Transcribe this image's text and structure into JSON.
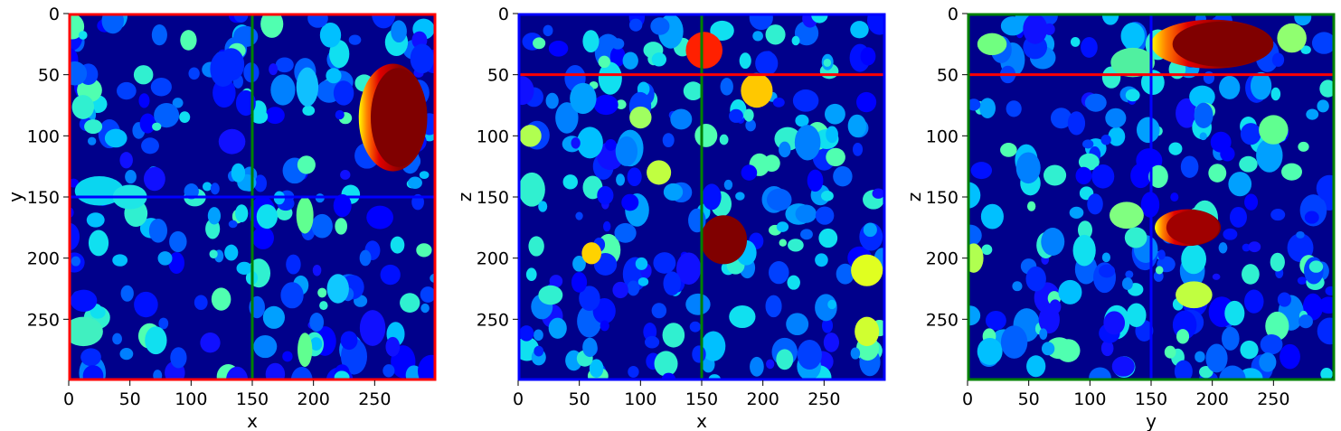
{
  "figure": {
    "background": "#ffffff"
  },
  "colors": {
    "background_label": "#00008b",
    "red_line": "#ff0000",
    "green_line": "#008000",
    "blue_line": "#0000ff",
    "colormap": "jet"
  },
  "chart_data": [
    {
      "type": "heatmap",
      "title": "",
      "xlabel": "x",
      "ylabel": "y",
      "xlim": [
        0,
        299
      ],
      "ylim": [
        299,
        0
      ],
      "xticks": [
        0,
        50,
        100,
        150,
        200,
        250
      ],
      "yticks": [
        0,
        50,
        100,
        150,
        200,
        250
      ],
      "frame_color": "#ff0000",
      "crosshair": [
        {
          "orientation": "vertical",
          "value": 150,
          "color": "#008000"
        },
        {
          "orientation": "horizontal",
          "value": 150,
          "color": "#0000ff"
        }
      ],
      "highlight_objects": [
        {
          "cx": 265,
          "cy": 85,
          "rx": 28,
          "ry": 44,
          "color": "#800000",
          "gradient": true
        },
        {
          "cx": 25,
          "cy": 145,
          "rx": 20,
          "ry": 12,
          "color": "#0ad6f0"
        },
        {
          "cx": 50,
          "cy": 150,
          "rx": 14,
          "ry": 10,
          "color": "#1ee6e6"
        },
        {
          "cx": 12,
          "cy": 260,
          "rx": 16,
          "ry": 12,
          "color": "#40f0c0"
        },
        {
          "cx": 195,
          "cy": 60,
          "rx": 9,
          "ry": 16,
          "color": "#10c0ff"
        },
        {
          "cx": 193,
          "cy": 165,
          "rx": 7,
          "ry": 15,
          "color": "#60ff90"
        },
        {
          "cx": 193,
          "cy": 275,
          "rx": 6,
          "ry": 14,
          "color": "#60ff90"
        },
        {
          "cx": 220,
          "cy": 225,
          "rx": 9,
          "ry": 12,
          "color": "#10c8ff"
        }
      ]
    },
    {
      "type": "heatmap",
      "title": "",
      "xlabel": "x",
      "ylabel": "z",
      "xlim": [
        0,
        299
      ],
      "ylim": [
        299,
        0
      ],
      "xticks": [
        0,
        50,
        100,
        150,
        200,
        250
      ],
      "yticks": [
        0,
        50,
        100,
        150,
        200,
        250
      ],
      "frame_color": "#0000ff",
      "crosshair": [
        {
          "orientation": "vertical",
          "value": 150,
          "color": "#008000"
        },
        {
          "orientation": "horizontal",
          "value": 50,
          "color": "#ff0000"
        }
      ],
      "highlight_objects": [
        {
          "cx": 152,
          "cy": 30,
          "rx": 15,
          "ry": 15,
          "color": "#ff2000"
        },
        {
          "cx": 195,
          "cy": 63,
          "rx": 13,
          "ry": 14,
          "color": "#ffc800"
        },
        {
          "cx": 168,
          "cy": 185,
          "rx": 19,
          "ry": 20,
          "color": "#800000"
        },
        {
          "cx": 60,
          "cy": 196,
          "rx": 8,
          "ry": 9,
          "color": "#ffd200"
        },
        {
          "cx": 285,
          "cy": 210,
          "rx": 13,
          "ry": 13,
          "color": "#e0ff20"
        },
        {
          "cx": 115,
          "cy": 130,
          "rx": 10,
          "ry": 10,
          "color": "#c0ff40"
        },
        {
          "cx": 100,
          "cy": 85,
          "rx": 9,
          "ry": 9,
          "color": "#a0ff60"
        },
        {
          "cx": 10,
          "cy": 100,
          "rx": 9,
          "ry": 9,
          "color": "#b0ff50"
        },
        {
          "cx": 285,
          "cy": 260,
          "rx": 10,
          "ry": 12,
          "color": "#d0ff30"
        }
      ]
    },
    {
      "type": "heatmap",
      "title": "",
      "xlabel": "y",
      "ylabel": "z",
      "xlim": [
        0,
        299
      ],
      "ylim": [
        299,
        0
      ],
      "xticks": [
        0,
        50,
        100,
        150,
        200,
        250
      ],
      "yticks": [
        0,
        50,
        100,
        150,
        200,
        250
      ],
      "frame_color": "#008000",
      "crosshair": [
        {
          "orientation": "vertical",
          "value": 150,
          "color": "#0000ff"
        },
        {
          "orientation": "horizontal",
          "value": 50,
          "color": "#ff0000"
        }
      ],
      "highlight_objects": [
        {
          "cx": 200,
          "cy": 25,
          "rx": 50,
          "ry": 20,
          "color": "#800000",
          "gradient": true
        },
        {
          "cx": 180,
          "cy": 175,
          "rx": 27,
          "ry": 15,
          "color": "#a00000",
          "gradient": true
        },
        {
          "cx": 185,
          "cy": 230,
          "rx": 15,
          "ry": 11,
          "color": "#c0ff40"
        },
        {
          "cx": 250,
          "cy": 95,
          "rx": 12,
          "ry": 12,
          "color": "#60ff90"
        },
        {
          "cx": 135,
          "cy": 40,
          "rx": 18,
          "ry": 12,
          "color": "#50f0a0"
        },
        {
          "cx": 20,
          "cy": 25,
          "rx": 12,
          "ry": 9,
          "color": "#70ff80"
        },
        {
          "cx": 5,
          "cy": 200,
          "rx": 8,
          "ry": 12,
          "color": "#b0ff50"
        },
        {
          "cx": 265,
          "cy": 20,
          "rx": 12,
          "ry": 12,
          "color": "#90ff70"
        },
        {
          "cx": 130,
          "cy": 165,
          "rx": 14,
          "ry": 11,
          "color": "#80ff80"
        }
      ]
    }
  ]
}
